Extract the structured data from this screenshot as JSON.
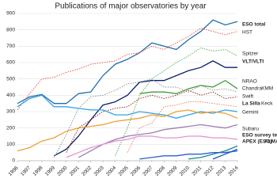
{
  "chart_data": {
    "type": "line",
    "title": "Publications of major observatories by year",
    "x": [
      1996,
      1997,
      1998,
      1999,
      2000,
      2001,
      2002,
      2003,
      2004,
      2005,
      2006,
      2007,
      2008,
      2009,
      2010,
      2011,
      2012,
      2013,
      2014
    ],
    "xlim": [
      1996,
      2014
    ],
    "xticks": [
      1996,
      1997,
      1998,
      1999,
      2000,
      2001,
      2002,
      2003,
      2004,
      2005,
      2006,
      2007,
      2008,
      2009,
      2010,
      2011,
      2012,
      2013,
      2014
    ],
    "ylim": [
      0,
      900
    ],
    "yticks": [
      0,
      100,
      200,
      300,
      400,
      500,
      600,
      700,
      800,
      900
    ],
    "grid": true,
    "series": [
      {
        "name": "ESO total",
        "color": "#1f6fb0",
        "dashed": false,
        "values": [
          350,
          390,
          405,
          350,
          350,
          410,
          420,
          520,
          590,
          620,
          660,
          720,
          700,
          680,
          740,
          790,
          860,
          830,
          850
        ]
      },
      {
        "name": "HST",
        "color": "#e8483b",
        "dashed": true,
        "values": [
          310,
          410,
          500,
          510,
          540,
          560,
          590,
          600,
          610,
          650,
          660,
          700,
          680,
          720,
          760,
          810,
          790,
          770,
          790
        ]
      },
      {
        "name": "Spitzer",
        "color": "#4aa83c",
        "dashed": true,
        "values": [
          null,
          null,
          null,
          null,
          null,
          null,
          null,
          null,
          30,
          200,
          400,
          500,
          550,
          600,
          640,
          690,
          670,
          680,
          640
        ]
      },
      {
        "name": "VLT/VLTI",
        "color": "#0a1f6e",
        "dashed": false,
        "values": [
          null,
          null,
          null,
          30,
          70,
          150,
          250,
          340,
          360,
          400,
          480,
          490,
          490,
          520,
          550,
          570,
          610,
          570,
          570
        ]
      },
      {
        "name": "NRAO",
        "color": "#3f9e3a",
        "dashed": false,
        "values": [
          null,
          null,
          null,
          null,
          null,
          null,
          null,
          null,
          null,
          null,
          410,
          420,
          420,
          410,
          440,
          460,
          450,
          490,
          440
        ]
      },
      {
        "name": "Chandra",
        "color": "#8a8a8a",
        "dashed": true,
        "values": [
          null,
          null,
          null,
          20,
          160,
          320,
          390,
          400,
          430,
          470,
          480,
          500,
          450,
          450,
          420,
          460,
          430,
          440,
          420
        ]
      },
      {
        "name": "XMM",
        "color": "#8b1a1a",
        "dashed": true,
        "values": [
          null,
          null,
          null,
          null,
          50,
          200,
          250,
          300,
          320,
          330,
          380,
          400,
          380,
          400,
          430,
          400,
          420,
          380,
          390
        ]
      },
      {
        "name": "Swift",
        "color": "#e97a5c",
        "dashed": true,
        "values": [
          null,
          null,
          null,
          null,
          null,
          null,
          null,
          null,
          null,
          50,
          200,
          230,
          330,
          340,
          360,
          360,
          350,
          340,
          330
        ]
      },
      {
        "name": "La Silla",
        "color": "#2fa3e6",
        "dashed": false,
        "values": [
          330,
          380,
          400,
          330,
          330,
          320,
          310,
          310,
          280,
          280,
          300,
          290,
          280,
          260,
          280,
          300,
          290,
          310,
          300
        ]
      },
      {
        "name": "Keck",
        "color": "#f0a030",
        "dashed": false,
        "values": [
          60,
          80,
          120,
          140,
          180,
          200,
          210,
          220,
          240,
          250,
          260,
          280,
          270,
          300,
          310,
          290,
          300,
          290,
          260
        ]
      },
      {
        "name": "Gemini",
        "color": "#9a7fb0",
        "dashed": false,
        "values": [
          null,
          null,
          null,
          null,
          null,
          20,
          60,
          100,
          130,
          150,
          160,
          170,
          190,
          200,
          210,
          220,
          210,
          200,
          220
        ]
      },
      {
        "name": "Subaru",
        "color": "#e890d0",
        "dashed": false,
        "values": [
          null,
          null,
          null,
          null,
          20,
          50,
          80,
          100,
          120,
          130,
          150,
          150,
          140,
          140,
          150,
          150,
          140,
          140,
          130
        ]
      },
      {
        "name": "ESO survey tel.",
        "color": "#138a8a",
        "dashed": false,
        "values": [
          null,
          null,
          null,
          null,
          null,
          null,
          null,
          null,
          null,
          null,
          null,
          null,
          null,
          null,
          10,
          20,
          40,
          60,
          90
        ]
      },
      {
        "name": "APEX (ESO)",
        "color": "#2a5fd0",
        "dashed": false,
        "values": [
          null,
          null,
          null,
          null,
          null,
          null,
          null,
          null,
          null,
          null,
          10,
          20,
          30,
          30,
          40,
          40,
          50,
          50,
          60
        ]
      },
      {
        "name": "ALMA",
        "color": "#1a4fc0",
        "dashed": false,
        "values": [
          null,
          null,
          null,
          null,
          null,
          null,
          null,
          null,
          null,
          null,
          null,
          null,
          null,
          null,
          null,
          null,
          10,
          40,
          70
        ]
      }
    ]
  }
}
